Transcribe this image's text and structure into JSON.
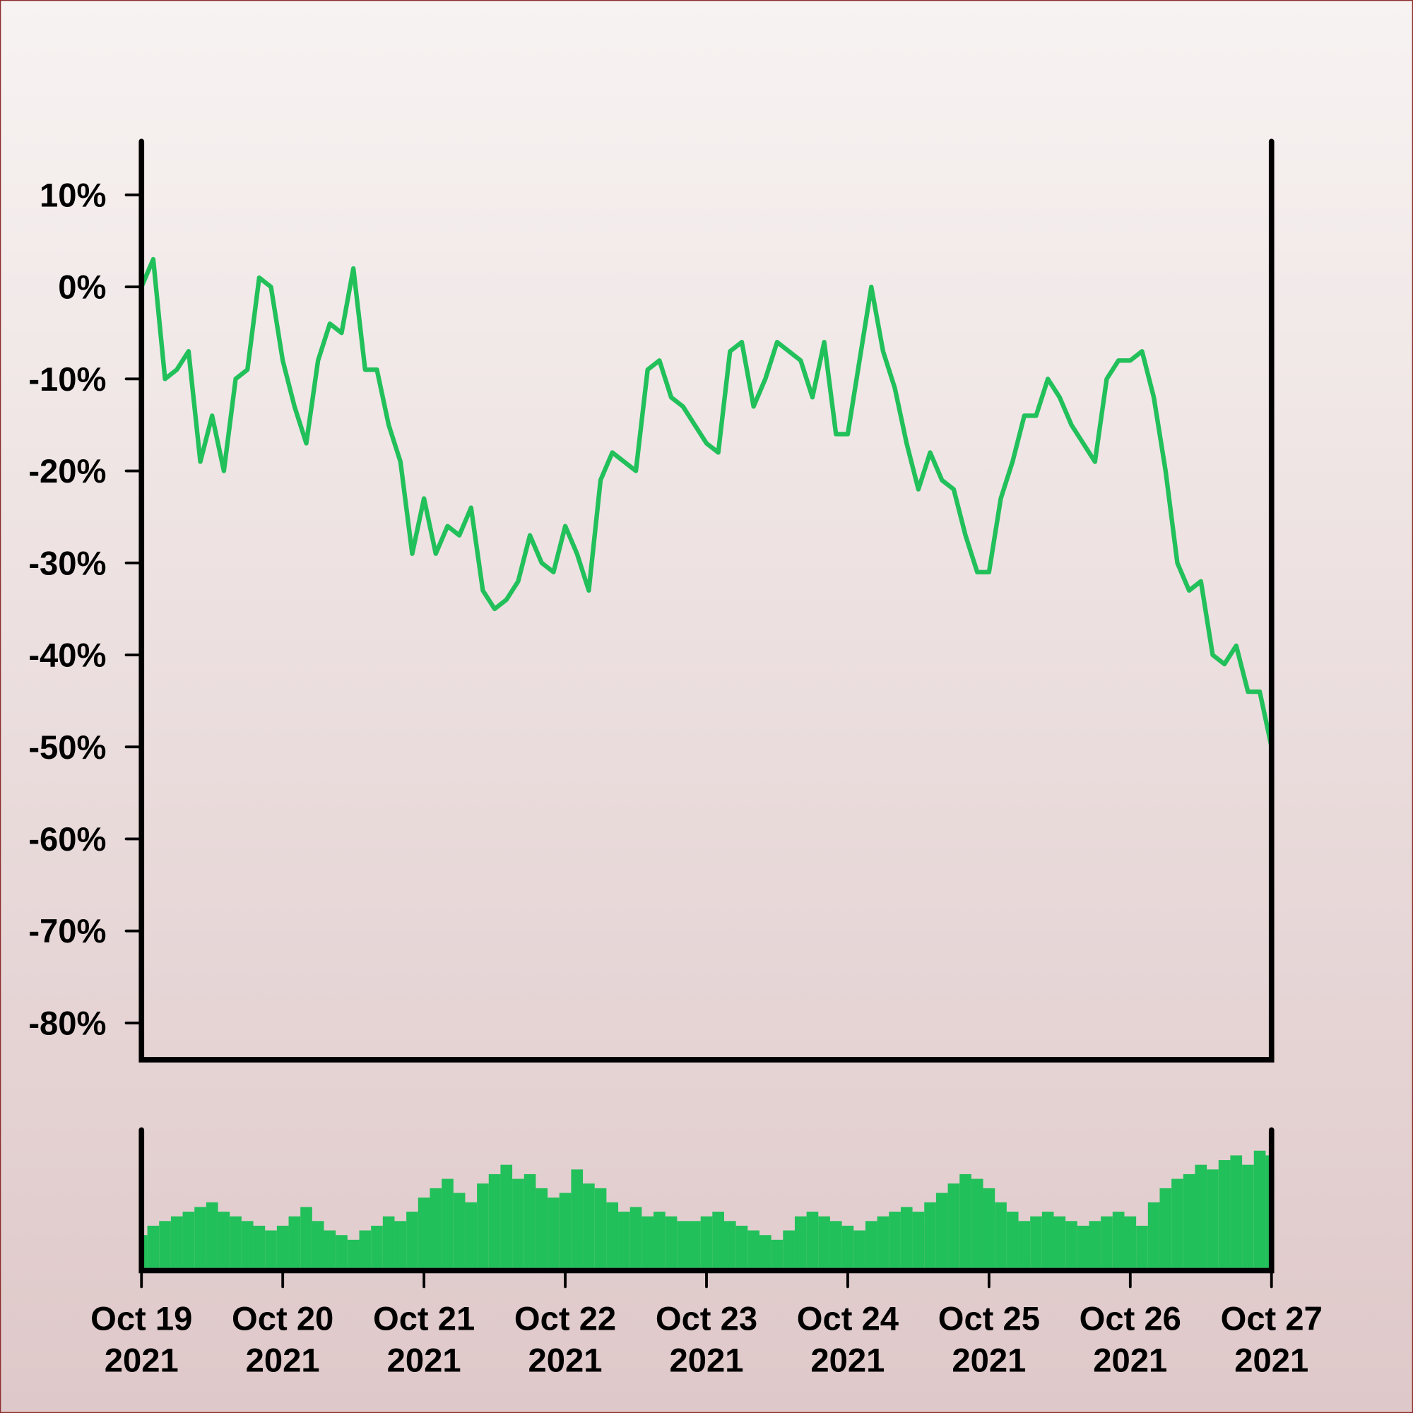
{
  "chart_data": [
    {
      "type": "line",
      "color": "#22c05a",
      "xlim": [
        "2021-10-19T00:00",
        "2021-10-27T00:00"
      ],
      "ylim": [
        -84,
        16
      ],
      "yticks": [
        {
          "value": 10,
          "label": "10%"
        },
        {
          "value": 0,
          "label": "0%"
        },
        {
          "value": -10,
          "label": "-10%"
        },
        {
          "value": -20,
          "label": "-20%"
        },
        {
          "value": -30,
          "label": "-30%"
        },
        {
          "value": -40,
          "label": "-40%"
        },
        {
          "value": -50,
          "label": "-50%"
        },
        {
          "value": -60,
          "label": "-60%"
        },
        {
          "value": -70,
          "label": "-70%"
        },
        {
          "value": -80,
          "label": "-80%"
        }
      ],
      "x": [
        "2021-10-19T00:00",
        "2021-10-19T02:00",
        "2021-10-19T04:00",
        "2021-10-19T06:00",
        "2021-10-19T08:00",
        "2021-10-19T10:00",
        "2021-10-19T12:00",
        "2021-10-19T14:00",
        "2021-10-19T16:00",
        "2021-10-19T18:00",
        "2021-10-19T20:00",
        "2021-10-19T22:00",
        "2021-10-20T00:00",
        "2021-10-20T02:00",
        "2021-10-20T04:00",
        "2021-10-20T06:00",
        "2021-10-20T08:00",
        "2021-10-20T10:00",
        "2021-10-20T12:00",
        "2021-10-20T14:00",
        "2021-10-20T16:00",
        "2021-10-20T18:00",
        "2021-10-20T20:00",
        "2021-10-20T22:00",
        "2021-10-21T00:00",
        "2021-10-21T02:00",
        "2021-10-21T04:00",
        "2021-10-21T06:00",
        "2021-10-21T08:00",
        "2021-10-21T10:00",
        "2021-10-21T12:00",
        "2021-10-21T14:00",
        "2021-10-21T16:00",
        "2021-10-21T18:00",
        "2021-10-21T20:00",
        "2021-10-21T22:00",
        "2021-10-22T00:00",
        "2021-10-22T02:00",
        "2021-10-22T04:00",
        "2021-10-22T06:00",
        "2021-10-22T08:00",
        "2021-10-22T10:00",
        "2021-10-22T12:00",
        "2021-10-22T14:00",
        "2021-10-22T16:00",
        "2021-10-22T18:00",
        "2021-10-22T20:00",
        "2021-10-22T22:00",
        "2021-10-23T00:00",
        "2021-10-23T02:00",
        "2021-10-23T04:00",
        "2021-10-23T06:00",
        "2021-10-23T08:00",
        "2021-10-23T10:00",
        "2021-10-23T12:00",
        "2021-10-23T14:00",
        "2021-10-23T16:00",
        "2021-10-23T18:00",
        "2021-10-23T20:00",
        "2021-10-23T22:00",
        "2021-10-24T00:00",
        "2021-10-24T02:00",
        "2021-10-24T04:00",
        "2021-10-24T06:00",
        "2021-10-24T08:00",
        "2021-10-24T10:00",
        "2021-10-24T12:00",
        "2021-10-24T14:00",
        "2021-10-24T16:00",
        "2021-10-24T18:00",
        "2021-10-24T20:00",
        "2021-10-24T22:00",
        "2021-10-25T00:00",
        "2021-10-25T02:00",
        "2021-10-25T04:00",
        "2021-10-25T06:00",
        "2021-10-25T08:00",
        "2021-10-25T10:00",
        "2021-10-25T12:00",
        "2021-10-25T14:00",
        "2021-10-25T16:00",
        "2021-10-25T18:00",
        "2021-10-25T20:00",
        "2021-10-25T22:00",
        "2021-10-26T00:00",
        "2021-10-26T02:00",
        "2021-10-26T04:00",
        "2021-10-26T06:00",
        "2021-10-26T08:00",
        "2021-10-26T10:00",
        "2021-10-26T12:00",
        "2021-10-26T14:00",
        "2021-10-26T16:00",
        "2021-10-26T18:00",
        "2021-10-26T20:00",
        "2021-10-26T22:00",
        "2021-10-27T00:00"
      ],
      "values": [
        0,
        3,
        -10,
        -9,
        -7,
        -19,
        -14,
        -20,
        -10,
        -9,
        1,
        0,
        -8,
        -13,
        -17,
        -8,
        -4,
        -5,
        2,
        -9,
        -9,
        -15,
        -19,
        -29,
        -23,
        -29,
        -26,
        -27,
        -24,
        -33,
        -35,
        -34,
        -32,
        -27,
        -30,
        -31,
        -26,
        -29,
        -33,
        -21,
        -18,
        -19,
        -20,
        -9,
        -8,
        -12,
        -13,
        -15,
        -17,
        -18,
        -7,
        -6,
        -13,
        -10,
        -6,
        -7,
        -8,
        -12,
        -6,
        -16,
        -16,
        -8,
        0,
        -7,
        -11,
        -17,
        -22,
        -18,
        -21,
        -22,
        -27,
        -31,
        -31,
        -23,
        -19,
        -14,
        -14,
        -10,
        -12,
        -15,
        -17,
        -19,
        -10,
        -8,
        -8,
        -7,
        -12,
        -20,
        -30,
        -33,
        -32,
        -40,
        -41,
        -39,
        -44,
        -44,
        -50
      ]
    },
    {
      "type": "bar",
      "color": "#22c05a",
      "xlim": [
        "2021-10-19T00:00",
        "2021-10-27T00:00"
      ],
      "xticks": [
        {
          "value": "2021-10-19T00:00",
          "label": [
            "Oct 19",
            "2021"
          ]
        },
        {
          "value": "2021-10-20T00:00",
          "label": [
            "Oct 20",
            "2021"
          ]
        },
        {
          "value": "2021-10-21T00:00",
          "label": [
            "Oct 21",
            "2021"
          ]
        },
        {
          "value": "2021-10-22T00:00",
          "label": [
            "Oct 22",
            "2021"
          ]
        },
        {
          "value": "2021-10-23T00:00",
          "label": [
            "Oct 23",
            "2021"
          ]
        },
        {
          "value": "2021-10-24T00:00",
          "label": [
            "Oct 24",
            "2021"
          ]
        },
        {
          "value": "2021-10-25T00:00",
          "label": [
            "Oct 25",
            "2021"
          ]
        },
        {
          "value": "2021-10-26T00:00",
          "label": [
            "Oct 26",
            "2021"
          ]
        },
        {
          "value": "2021-10-27T00:00",
          "label": [
            "Oct 27",
            "2021"
          ]
        }
      ],
      "x": [
        "2021-10-19T00:00",
        "2021-10-19T02:00",
        "2021-10-19T04:00",
        "2021-10-19T06:00",
        "2021-10-19T08:00",
        "2021-10-19T10:00",
        "2021-10-19T12:00",
        "2021-10-19T14:00",
        "2021-10-19T16:00",
        "2021-10-19T18:00",
        "2021-10-19T20:00",
        "2021-10-19T22:00",
        "2021-10-20T00:00",
        "2021-10-20T02:00",
        "2021-10-20T04:00",
        "2021-10-20T06:00",
        "2021-10-20T08:00",
        "2021-10-20T10:00",
        "2021-10-20T12:00",
        "2021-10-20T14:00",
        "2021-10-20T16:00",
        "2021-10-20T18:00",
        "2021-10-20T20:00",
        "2021-10-20T22:00",
        "2021-10-21T00:00",
        "2021-10-21T02:00",
        "2021-10-21T04:00",
        "2021-10-21T06:00",
        "2021-10-21T08:00",
        "2021-10-21T10:00",
        "2021-10-21T12:00",
        "2021-10-21T14:00",
        "2021-10-21T16:00",
        "2021-10-21T18:00",
        "2021-10-21T20:00",
        "2021-10-21T22:00",
        "2021-10-22T00:00",
        "2021-10-22T02:00",
        "2021-10-22T04:00",
        "2021-10-22T06:00",
        "2021-10-22T08:00",
        "2021-10-22T10:00",
        "2021-10-22T12:00",
        "2021-10-22T14:00",
        "2021-10-22T16:00",
        "2021-10-22T18:00",
        "2021-10-22T20:00",
        "2021-10-22T22:00",
        "2021-10-23T00:00",
        "2021-10-23T02:00",
        "2021-10-23T04:00",
        "2021-10-23T06:00",
        "2021-10-23T08:00",
        "2021-10-23T10:00",
        "2021-10-23T12:00",
        "2021-10-23T14:00",
        "2021-10-23T16:00",
        "2021-10-23T18:00",
        "2021-10-23T20:00",
        "2021-10-23T22:00",
        "2021-10-24T00:00",
        "2021-10-24T02:00",
        "2021-10-24T04:00",
        "2021-10-24T06:00",
        "2021-10-24T08:00",
        "2021-10-24T10:00",
        "2021-10-24T12:00",
        "2021-10-24T14:00",
        "2021-10-24T16:00",
        "2021-10-24T18:00",
        "2021-10-24T20:00",
        "2021-10-24T22:00",
        "2021-10-25T00:00",
        "2021-10-25T02:00",
        "2021-10-25T04:00",
        "2021-10-25T06:00",
        "2021-10-25T08:00",
        "2021-10-25T10:00",
        "2021-10-25T12:00",
        "2021-10-25T14:00",
        "2021-10-25T16:00",
        "2021-10-25T18:00",
        "2021-10-25T20:00",
        "2021-10-25T22:00",
        "2021-10-26T00:00",
        "2021-10-26T02:00",
        "2021-10-26T04:00",
        "2021-10-26T06:00",
        "2021-10-26T08:00",
        "2021-10-26T10:00",
        "2021-10-26T12:00",
        "2021-10-26T14:00",
        "2021-10-26T16:00",
        "2021-10-26T18:00",
        "2021-10-26T20:00",
        "2021-10-26T22:00",
        "2021-10-27T00:00"
      ],
      "values": [
        35,
        45,
        50,
        55,
        60,
        65,
        70,
        60,
        55,
        50,
        45,
        40,
        45,
        55,
        65,
        50,
        40,
        35,
        30,
        40,
        45,
        55,
        50,
        60,
        75,
        85,
        95,
        80,
        70,
        90,
        100,
        110,
        95,
        100,
        85,
        75,
        80,
        105,
        90,
        85,
        70,
        60,
        65,
        55,
        60,
        55,
        50,
        50,
        55,
        60,
        50,
        45,
        40,
        35,
        30,
        40,
        55,
        60,
        55,
        50,
        45,
        40,
        50,
        55,
        60,
        65,
        60,
        70,
        80,
        90,
        100,
        95,
        85,
        70,
        60,
        50,
        55,
        60,
        55,
        50,
        45,
        50,
        55,
        60,
        55,
        45,
        70,
        85,
        95,
        100,
        110,
        105,
        115,
        120,
        110,
        125,
        120
      ]
    }
  ]
}
